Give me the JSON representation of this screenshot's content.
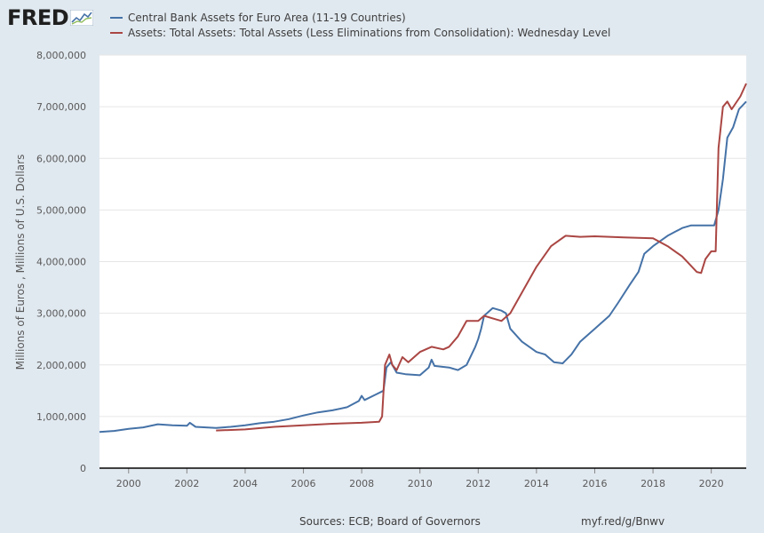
{
  "logo": {
    "text": "FRED"
  },
  "footer": {
    "sources": "Sources: ECB; Board of Governors",
    "link": "myf.red/g/Bnwv"
  },
  "chart_data": {
    "type": "line",
    "title": "",
    "xlabel": "",
    "ylabel": "Millions of Euros , Millions of U.S. Dollars",
    "xlim": [
      1999.0,
      2021.2
    ],
    "ylim": [
      0,
      8000000
    ],
    "xticks": [
      2000,
      2002,
      2004,
      2006,
      2008,
      2010,
      2012,
      2014,
      2016,
      2018,
      2020
    ],
    "yticks": [
      0,
      1000000,
      2000000,
      3000000,
      4000000,
      5000000,
      6000000,
      7000000,
      8000000
    ],
    "ytick_labels": [
      "0",
      "1,000,000",
      "2,000,000",
      "3,000,000",
      "4,000,000",
      "5,000,000",
      "6,000,000",
      "7,000,000",
      "8,000,000"
    ],
    "grid": true,
    "legend_position": "top-left",
    "series": [
      {
        "name": "Central Bank Assets for Euro Area (11-19 Countries)",
        "color": "#4572a7",
        "points": [
          [
            1999.0,
            700000
          ],
          [
            1999.5,
            720000
          ],
          [
            2000.0,
            760000
          ],
          [
            2000.5,
            790000
          ],
          [
            2001.0,
            850000
          ],
          [
            2001.5,
            830000
          ],
          [
            2002.0,
            820000
          ],
          [
            2002.1,
            880000
          ],
          [
            2002.3,
            800000
          ],
          [
            2003.0,
            780000
          ],
          [
            2003.5,
            800000
          ],
          [
            2004.0,
            830000
          ],
          [
            2004.5,
            870000
          ],
          [
            2005.0,
            900000
          ],
          [
            2005.5,
            950000
          ],
          [
            2006.0,
            1020000
          ],
          [
            2006.5,
            1080000
          ],
          [
            2007.0,
            1120000
          ],
          [
            2007.5,
            1180000
          ],
          [
            2007.9,
            1300000
          ],
          [
            2008.0,
            1400000
          ],
          [
            2008.1,
            1320000
          ],
          [
            2008.5,
            1430000
          ],
          [
            2008.75,
            1500000
          ],
          [
            2008.85,
            1950000
          ],
          [
            2009.0,
            2050000
          ],
          [
            2009.2,
            1850000
          ],
          [
            2009.5,
            1820000
          ],
          [
            2010.0,
            1800000
          ],
          [
            2010.3,
            1950000
          ],
          [
            2010.4,
            2100000
          ],
          [
            2010.5,
            1980000
          ],
          [
            2011.0,
            1950000
          ],
          [
            2011.3,
            1900000
          ],
          [
            2011.6,
            2000000
          ],
          [
            2011.9,
            2350000
          ],
          [
            2012.0,
            2500000
          ],
          [
            2012.1,
            2700000
          ],
          [
            2012.2,
            2950000
          ],
          [
            2012.3,
            3000000
          ],
          [
            2012.5,
            3100000
          ],
          [
            2012.8,
            3050000
          ],
          [
            2012.95,
            3000000
          ],
          [
            2013.1,
            2700000
          ],
          [
            2013.5,
            2450000
          ],
          [
            2014.0,
            2250000
          ],
          [
            2014.3,
            2200000
          ],
          [
            2014.6,
            2050000
          ],
          [
            2014.9,
            2030000
          ],
          [
            2015.2,
            2200000
          ],
          [
            2015.5,
            2450000
          ],
          [
            2016.0,
            2700000
          ],
          [
            2016.5,
            2950000
          ],
          [
            2016.8,
            3200000
          ],
          [
            2017.2,
            3550000
          ],
          [
            2017.5,
            3800000
          ],
          [
            2017.7,
            4150000
          ],
          [
            2018.0,
            4300000
          ],
          [
            2018.5,
            4500000
          ],
          [
            2019.0,
            4650000
          ],
          [
            2019.3,
            4700000
          ],
          [
            2019.6,
            4700000
          ],
          [
            2019.9,
            4700000
          ],
          [
            2020.1,
            4700000
          ],
          [
            2020.25,
            5000000
          ],
          [
            2020.4,
            5600000
          ],
          [
            2020.55,
            6400000
          ],
          [
            2020.75,
            6600000
          ],
          [
            2020.95,
            6950000
          ],
          [
            2021.2,
            7100000
          ]
        ]
      },
      {
        "name": "Assets: Total Assets: Total Assets (Less Eliminations from Consolidation): Wednesday Level",
        "color": "#aa4643",
        "points": [
          [
            2003.0,
            730000
          ],
          [
            2004.0,
            750000
          ],
          [
            2005.0,
            800000
          ],
          [
            2006.0,
            830000
          ],
          [
            2007.0,
            860000
          ],
          [
            2008.0,
            880000
          ],
          [
            2008.6,
            900000
          ],
          [
            2008.7,
            1000000
          ],
          [
            2008.8,
            2000000
          ],
          [
            2008.95,
            2200000
          ],
          [
            2009.05,
            2000000
          ],
          [
            2009.2,
            1900000
          ],
          [
            2009.4,
            2150000
          ],
          [
            2009.6,
            2050000
          ],
          [
            2010.0,
            2250000
          ],
          [
            2010.4,
            2350000
          ],
          [
            2010.8,
            2300000
          ],
          [
            2011.0,
            2350000
          ],
          [
            2011.3,
            2550000
          ],
          [
            2011.6,
            2850000
          ],
          [
            2012.0,
            2850000
          ],
          [
            2012.2,
            2950000
          ],
          [
            2012.5,
            2900000
          ],
          [
            2012.8,
            2850000
          ],
          [
            2013.1,
            3000000
          ],
          [
            2013.5,
            3400000
          ],
          [
            2014.0,
            3900000
          ],
          [
            2014.5,
            4300000
          ],
          [
            2015.0,
            4500000
          ],
          [
            2015.5,
            4480000
          ],
          [
            2016.0,
            4490000
          ],
          [
            2016.5,
            4480000
          ],
          [
            2017.0,
            4470000
          ],
          [
            2017.5,
            4460000
          ],
          [
            2018.0,
            4450000
          ],
          [
            2018.5,
            4300000
          ],
          [
            2019.0,
            4100000
          ],
          [
            2019.5,
            3800000
          ],
          [
            2019.65,
            3780000
          ],
          [
            2019.8,
            4050000
          ],
          [
            2020.0,
            4200000
          ],
          [
            2020.15,
            4200000
          ],
          [
            2020.25,
            6200000
          ],
          [
            2020.4,
            7000000
          ],
          [
            2020.55,
            7100000
          ],
          [
            2020.7,
            6950000
          ],
          [
            2021.0,
            7200000
          ],
          [
            2021.2,
            7450000
          ]
        ]
      }
    ]
  }
}
